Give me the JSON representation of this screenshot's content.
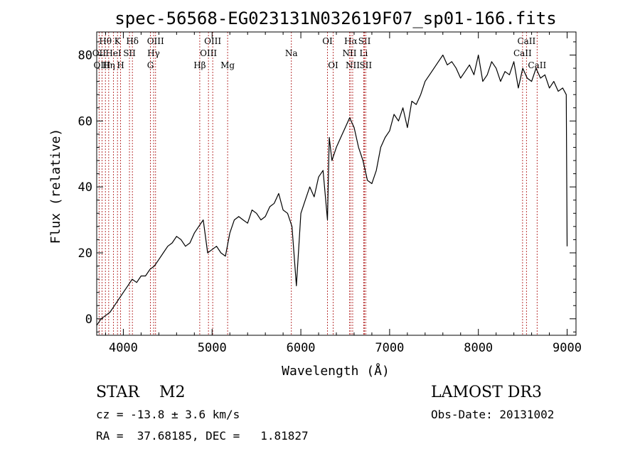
{
  "chart_data": {
    "type": "line",
    "title": "spec-56568-EG023131N032619F07_sp01-166.fits",
    "xlabel": "Wavelength (Å)",
    "ylabel": "Flux (relative)",
    "xlim": [
      3700,
      9100
    ],
    "ylim": [
      -5,
      87
    ],
    "xticks": [
      4000,
      5000,
      6000,
      7000,
      8000,
      9000
    ],
    "yticks": [
      0,
      20,
      40,
      60,
      80
    ],
    "series": [
      {
        "x": [
          3700,
          3750,
          3800,
          3850,
          3900,
          3950,
          4000,
          4050,
          4100,
          4150,
          4200,
          4250,
          4300,
          4350,
          4400,
          4450,
          4500,
          4550,
          4600,
          4650,
          4700,
          4750,
          4800,
          4850,
          4900,
          4950,
          5000,
          5050,
          5100,
          5150,
          5200,
          5250,
          5300,
          5350,
          5400,
          5450,
          5500,
          5550,
          5600,
          5650,
          5700,
          5750,
          5800,
          5850,
          5900,
          5950,
          6000,
          6050,
          6100,
          6150,
          6200,
          6250,
          6300,
          6320,
          6350,
          6400,
          6450,
          6500,
          6550,
          6600,
          6650,
          6700,
          6750,
          6800,
          6850,
          6900,
          6950,
          7000,
          7050,
          7100,
          7150,
          7200,
          7250,
          7300,
          7350,
          7400,
          7450,
          7500,
          7550,
          7600,
          7650,
          7700,
          7750,
          7800,
          7850,
          7900,
          7950,
          8000,
          8050,
          8100,
          8150,
          8200,
          8250,
          8300,
          8350,
          8400,
          8450,
          8500,
          8550,
          8600,
          8650,
          8700,
          8750,
          8800,
          8850,
          8900,
          8950,
          8990,
          9000
        ],
        "y": [
          -2,
          0,
          1,
          2,
          4,
          6,
          8,
          10,
          12,
          11,
          13,
          13,
          15,
          16,
          18,
          20,
          22,
          23,
          25,
          24,
          22,
          23,
          26,
          28,
          30,
          20,
          21,
          22,
          20,
          19,
          26,
          30,
          31,
          30,
          29,
          33,
          32,
          30,
          31,
          34,
          35,
          38,
          33,
          32,
          28,
          10,
          32,
          36,
          40,
          37,
          43,
          45,
          30,
          55,
          48,
          52,
          55,
          58,
          61,
          58,
          52,
          48,
          42,
          41,
          45,
          52,
          55,
          57,
          62,
          60,
          64,
          58,
          66,
          65,
          68,
          72,
          74,
          76,
          78,
          80,
          77,
          78,
          76,
          73,
          75,
          77,
          74,
          80,
          72,
          74,
          78,
          76,
          72,
          75,
          74,
          78,
          70,
          76,
          73,
          72,
          76,
          73,
          74,
          70,
          72,
          69,
          70,
          68,
          22
        ]
      }
    ],
    "lines": [
      {
        "label": "Hθ",
        "x": 3798,
        "row": 0
      },
      {
        "label": "OII",
        "x": 3727,
        "row": 1
      },
      {
        "label": "OIII",
        "x": 3760,
        "row": 2
      },
      {
        "label": "K",
        "x": 3934,
        "row": 0
      },
      {
        "label": "HeI",
        "x": 3889,
        "row": 1
      },
      {
        "label": "Hη",
        "x": 3835,
        "row": 2
      },
      {
        "label": "H",
        "x": 3969,
        "row": 2
      },
      {
        "label": "SII",
        "x": 4069,
        "row": 1
      },
      {
        "label": "Hδ",
        "x": 4102,
        "row": 0
      },
      {
        "label": "OIII",
        "x": 4363,
        "row": 0
      },
      {
        "label": "Hγ",
        "x": 4341,
        "row": 1
      },
      {
        "label": "G",
        "x": 4305,
        "row": 2
      },
      {
        "label": "OIII",
        "x": 5007,
        "row": 0
      },
      {
        "label": "OIII",
        "x": 4959,
        "row": 1
      },
      {
        "label": "Hβ",
        "x": 4861,
        "row": 2
      },
      {
        "label": "Mg",
        "x": 5175,
        "row": 2
      },
      {
        "label": "Na",
        "x": 5893,
        "row": 1
      },
      {
        "label": "OI",
        "x": 6300,
        "row": 0
      },
      {
        "label": "OI",
        "x": 6364,
        "row": 2
      },
      {
        "label": "Hα",
        "x": 6563,
        "row": 0
      },
      {
        "label": "NII",
        "x": 6548,
        "row": 1
      },
      {
        "label": "NII",
        "x": 6584,
        "row": 2
      },
      {
        "label": "SII",
        "x": 6717,
        "row": 0
      },
      {
        "label": "Li",
        "x": 6708,
        "row": 1
      },
      {
        "label": "SII",
        "x": 6731,
        "row": 2
      },
      {
        "label": "CaII",
        "x": 8542,
        "row": 0
      },
      {
        "label": "CaII",
        "x": 8498,
        "row": 1
      },
      {
        "label": "CaII",
        "x": 8662,
        "row": 2
      }
    ]
  },
  "info": {
    "class_line": "STAR    M2",
    "survey": "LAMOST DR3",
    "cz": "cz = -13.8 ± 3.6 km/s",
    "obs_date": "Obs-Date: 20131002",
    "radec": "RA =  37.68185, DEC =   1.81827"
  },
  "colors": {
    "spectrum": "#000000",
    "line_markers": "#b22222"
  }
}
